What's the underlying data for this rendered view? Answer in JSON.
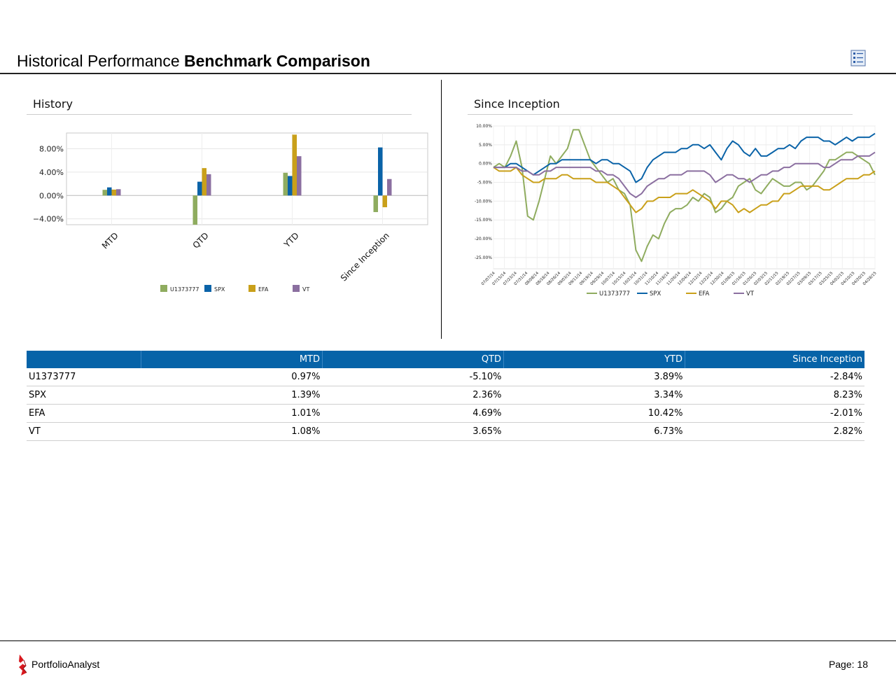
{
  "header": {
    "title_light": "Historical Performance",
    "title_bold": "Benchmark Comparison",
    "icon": "report-icon"
  },
  "colors": {
    "U1373777": "#8fac5f",
    "SPX": "#0a63a8",
    "EFA": "#c9a01a",
    "VT": "#8b6fa0",
    "table_header": "#0663a8"
  },
  "history_panel": {
    "title": "History"
  },
  "inception_panel": {
    "title": "Since Inception"
  },
  "chart_data": [
    {
      "type": "bar",
      "categories": [
        "MTD",
        "QTD",
        "YTD",
        "Since Inception"
      ],
      "series": [
        {
          "name": "U1373777",
          "values": [
            0.97,
            -5.1,
            3.89,
            -2.84
          ]
        },
        {
          "name": "SPX",
          "values": [
            1.39,
            2.36,
            3.34,
            8.23
          ]
        },
        {
          "name": "EFA",
          "values": [
            1.01,
            4.69,
            10.42,
            -2.01
          ]
        },
        {
          "name": "VT",
          "values": [
            1.08,
            3.65,
            6.73,
            2.82
          ]
        }
      ],
      "ylim": [
        -5.0,
        10.7
      ],
      "yticks": [
        8.0,
        4.0,
        0.0,
        -4.0
      ],
      "ytick_labels": [
        "8.00%",
        "4.00%",
        "0.00%",
        "−4.00%"
      ],
      "grid": true,
      "legend": "bottom"
    },
    {
      "type": "line",
      "ylim": [
        -28,
        10
      ],
      "yticks": [
        10,
        5,
        0,
        -5,
        -10,
        -15,
        -20,
        -25
      ],
      "ytick_labels": [
        "10.00%",
        "5.00%",
        "0.00%",
        "-5.00%",
        "-10.00%",
        "-15.00%",
        "-20.00%",
        "-25.00%"
      ],
      "x_labels": [
        "07/07/14",
        "07/15/14",
        "07/23/14",
        "07/31/14",
        "08/08/14",
        "08/18/14",
        "08/26/14",
        "09/03/14",
        "09/11/14",
        "09/19/14",
        "09/29/14",
        "10/07/14",
        "10/15/14",
        "10/23/14",
        "10/31/14",
        "11/10/14",
        "11/18/14",
        "11/26/14",
        "12/04/14",
        "12/12/14",
        "12/22/14",
        "12/30/14",
        "01/08/15",
        "01/16/15",
        "01/26/15",
        "02/03/15",
        "02/11/15",
        "02/19/15",
        "02/27/15",
        "03/09/15",
        "03/17/15",
        "03/25/15",
        "04/02/15",
        "04/10/15",
        "04/20/15",
        "04/28/15"
      ],
      "series": [
        {
          "name": "U1373777",
          "values": [
            -1,
            0,
            -1,
            2,
            6,
            -1,
            -14,
            -15,
            -10,
            -4,
            2,
            0,
            2,
            4,
            9,
            9,
            5,
            1,
            -1,
            -3,
            -5,
            -4,
            -7,
            -8,
            -11,
            -23,
            -26,
            -22,
            -19,
            -20,
            -16,
            -13,
            -12,
            -12,
            -11,
            -9,
            -10,
            -8,
            -9,
            -13,
            -12,
            -10,
            -9,
            -6,
            -5,
            -4,
            -7,
            -8,
            -6,
            -4,
            -5,
            -6,
            -6,
            -5,
            -5,
            -7,
            -6,
            -4,
            -2,
            1,
            1,
            2,
            3,
            3,
            2,
            1,
            0,
            -3
          ]
        },
        {
          "name": "SPX",
          "values": [
            -1,
            -1,
            -1,
            0,
            0,
            -1,
            -2,
            -3,
            -2,
            -1,
            0,
            0,
            1,
            1,
            1,
            1,
            1,
            1,
            0,
            1,
            1,
            0,
            0,
            -1,
            -2,
            -5,
            -4,
            -1,
            1,
            2,
            3,
            3,
            3,
            4,
            4,
            5,
            5,
            4,
            5,
            3,
            1,
            4,
            6,
            5,
            3,
            2,
            4,
            2,
            2,
            3,
            4,
            4,
            5,
            4,
            6,
            7,
            7,
            7,
            6,
            6,
            5,
            6,
            7,
            6,
            7,
            7,
            7,
            8
          ]
        },
        {
          "name": "EFA",
          "values": [
            -1,
            -2,
            -2,
            -2,
            -1,
            -3,
            -4,
            -5,
            -5,
            -4,
            -4,
            -4,
            -3,
            -3,
            -4,
            -4,
            -4,
            -4,
            -5,
            -5,
            -5,
            -6,
            -7,
            -9,
            -11,
            -13,
            -12,
            -10,
            -10,
            -9,
            -9,
            -9,
            -8,
            -8,
            -8,
            -7,
            -8,
            -9,
            -10,
            -12,
            -10,
            -10,
            -11,
            -13,
            -12,
            -13,
            -12,
            -11,
            -11,
            -10,
            -10,
            -8,
            -8,
            -7,
            -6,
            -6,
            -6,
            -6,
            -7,
            -7,
            -6,
            -5,
            -4,
            -4,
            -4,
            -3,
            -3,
            -2
          ]
        },
        {
          "name": "VT",
          "values": [
            -1,
            -1,
            -1,
            -1,
            -1,
            -2,
            -2,
            -3,
            -3,
            -2,
            -2,
            -1,
            -1,
            -1,
            -1,
            -1,
            -1,
            -1,
            -2,
            -2,
            -3,
            -3,
            -4,
            -6,
            -8,
            -9,
            -8,
            -6,
            -5,
            -4,
            -4,
            -3,
            -3,
            -3,
            -2,
            -2,
            -2,
            -2,
            -3,
            -5,
            -4,
            -3,
            -3,
            -4,
            -4,
            -5,
            -4,
            -3,
            -3,
            -2,
            -2,
            -1,
            -1,
            0,
            0,
            0,
            0,
            0,
            -1,
            -1,
            0,
            1,
            1,
            1,
            2,
            2,
            2,
            3
          ]
        }
      ],
      "grid": true,
      "legend": "bottom"
    }
  ],
  "table": {
    "headers": [
      "",
      "MTD",
      "QTD",
      "YTD",
      "Since Inception"
    ],
    "rows": [
      [
        "U1373777",
        "0.97%",
        "-5.10%",
        "3.89%",
        "-2.84%"
      ],
      [
        "SPX",
        "1.39%",
        "2.36%",
        "3.34%",
        "8.23%"
      ],
      [
        "EFA",
        "1.01%",
        "4.69%",
        "10.42%",
        "-2.01%"
      ],
      [
        "VT",
        "1.08%",
        "3.65%",
        "6.73%",
        "2.82%"
      ]
    ]
  },
  "footer": {
    "brand": "PortfolioAnalyst",
    "page_label": "Page: 18",
    "logo": "portfolioanalyst-logo"
  }
}
